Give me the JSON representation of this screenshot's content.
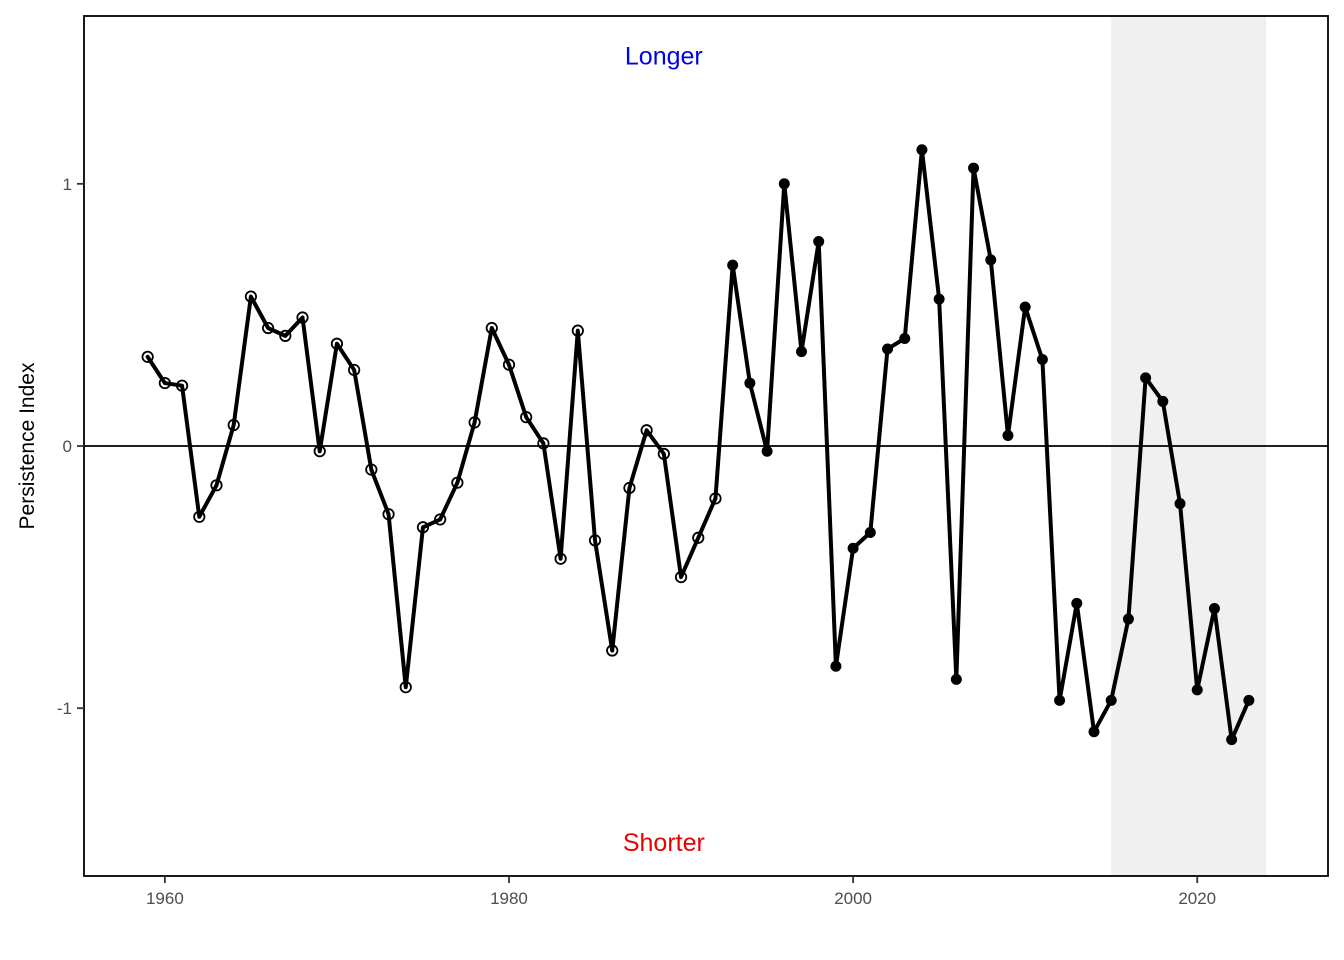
{
  "chart_data": {
    "type": "line",
    "title": "",
    "xlabel": "",
    "ylabel": "Persistence Index",
    "xlim": [
      1955.3,
      2027.6
    ],
    "ylim": [
      -1.64,
      1.64
    ],
    "x_ticks": [
      1960,
      1980,
      2000,
      2020
    ],
    "x_tick_labels": [
      "1960",
      "1980",
      "2000",
      "2020"
    ],
    "y_ticks": [
      -1,
      0,
      1
    ],
    "y_tick_labels": [
      "-1",
      "0",
      "1"
    ],
    "reference_line_y": 0,
    "shaded_region": {
      "x_start": 2015,
      "x_end": 2024,
      "color": "#f0f0f0"
    },
    "grid": false,
    "annotations": [
      {
        "text": "Longer",
        "x": 1989,
        "y": 1.49,
        "color": "#0000ee"
      },
      {
        "text": "Shorter",
        "x": 1989,
        "y": -1.51,
        "color": "#ee0000"
      }
    ],
    "line_color": "#000000",
    "points_open_until": 1992,
    "x": [
      1959,
      1960,
      1961,
      1962,
      1963,
      1964,
      1965,
      1966,
      1967,
      1968,
      1969,
      1970,
      1971,
      1972,
      1973,
      1974,
      1975,
      1976,
      1977,
      1978,
      1979,
      1980,
      1981,
      1982,
      1983,
      1984,
      1985,
      1986,
      1987,
      1988,
      1989,
      1990,
      1991,
      1992,
      1993,
      1994,
      1995,
      1996,
      1997,
      1998,
      1999,
      2000,
      2001,
      2002,
      2003,
      2004,
      2005,
      2006,
      2007,
      2008,
      2009,
      2010,
      2011,
      2012,
      2013,
      2014,
      2015,
      2016,
      2017,
      2018,
      2019,
      2020,
      2021,
      2022,
      2023
    ],
    "y": [
      0.34,
      0.24,
      0.23,
      -0.27,
      -0.15,
      0.08,
      0.57,
      0.45,
      0.42,
      0.49,
      -0.02,
      0.39,
      0.29,
      -0.09,
      -0.26,
      -0.92,
      -0.31,
      -0.28,
      -0.14,
      0.09,
      0.45,
      0.31,
      0.11,
      0.01,
      -0.43,
      0.44,
      -0.36,
      -0.78,
      -0.16,
      0.06,
      -0.03,
      -0.5,
      -0.35,
      -0.2,
      0.69,
      0.24,
      -0.02,
      1.0,
      0.36,
      0.78,
      -0.84,
      -0.39,
      -0.33,
      0.37,
      0.41,
      1.13,
      0.56,
      -0.89,
      1.06,
      0.71,
      0.04,
      0.53,
      0.33,
      -0.97,
      -0.6,
      -1.09,
      -0.97,
      -0.66,
      0.26,
      0.17,
      -0.22,
      -0.93,
      -0.62,
      -1.12,
      -0.97
    ]
  }
}
